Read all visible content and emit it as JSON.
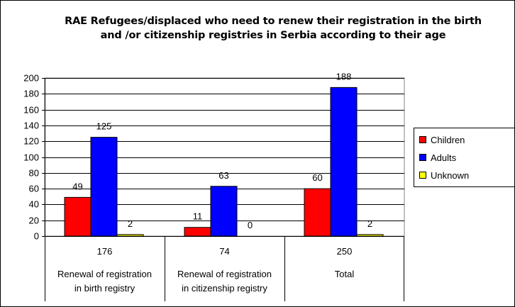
{
  "chart_data": {
    "type": "bar",
    "title": [
      "RAE Refugees/displaced who need to renew their registration in the birth",
      "and /or citizenship registries in Serbia according to their age"
    ],
    "categories": [
      {
        "total": "176",
        "label": [
          "Renewal of registration",
          "in birth registry"
        ]
      },
      {
        "total": "74",
        "label": [
          "Renewal of registration",
          "in citizenship registry"
        ]
      },
      {
        "total": "250",
        "label": [
          "Total"
        ]
      }
    ],
    "series": [
      {
        "name": "Children",
        "color": "#ff0000",
        "values": [
          49,
          11,
          60
        ]
      },
      {
        "name": "Adults",
        "color": "#0000ff",
        "values": [
          125,
          63,
          188
        ]
      },
      {
        "name": "Unknown",
        "color": "#ffff00",
        "values": [
          2,
          0,
          2
        ]
      }
    ],
    "ylim": [
      0,
      200
    ],
    "yticks": [
      0,
      20,
      40,
      60,
      80,
      100,
      120,
      140,
      160,
      180,
      200
    ],
    "grid": true,
    "legend": "right"
  }
}
